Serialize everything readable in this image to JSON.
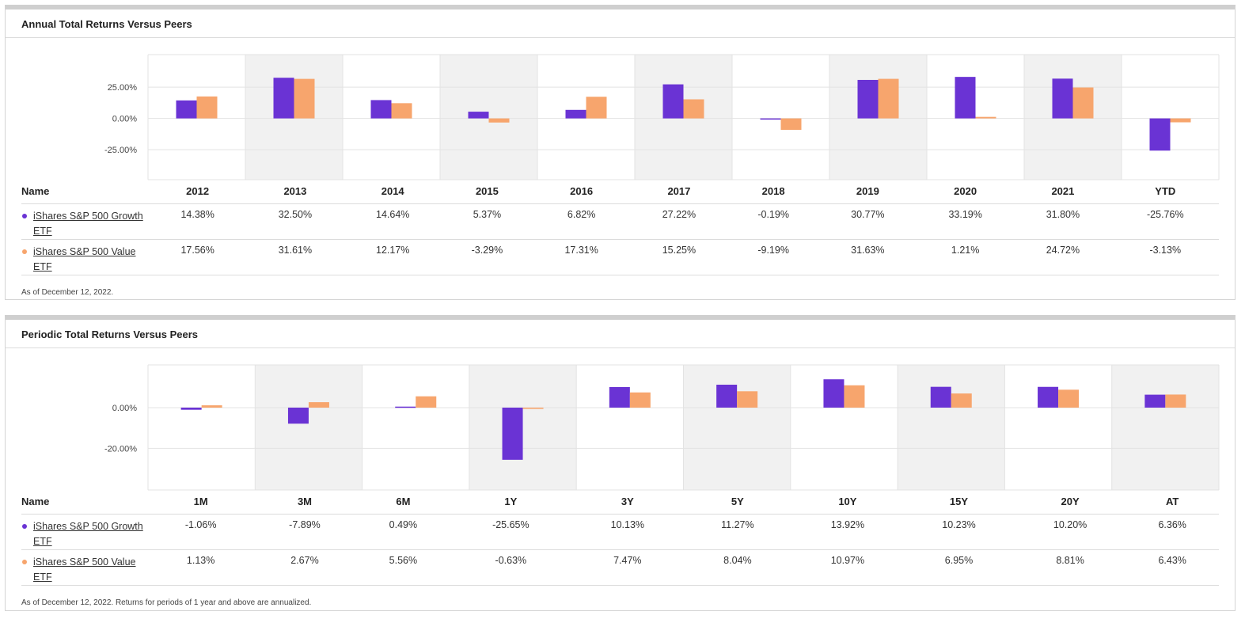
{
  "colors": {
    "growth": "#6a33d4",
    "value": "#f7a56d",
    "band": "#f1f1f1",
    "grid": "#e3e3e3"
  },
  "legend": [
    {
      "name": "iShares S&P 500 Growth ETF",
      "color": "#6a33d4",
      "icon": "dot-icon"
    },
    {
      "name": "iShares S&P 500 Value ETF",
      "color": "#f7a56d",
      "icon": "dot-icon"
    }
  ],
  "annual": {
    "title": "Annual Total Returns Versus Peers",
    "name_header": "Name",
    "footnote": "As of December 12, 2022.",
    "rows": [
      {
        "name": "iShares S&P 500 Growth ETF",
        "values": [
          "14.38%",
          "32.50%",
          "14.64%",
          "5.37%",
          "6.82%",
          "27.22%",
          "-0.19%",
          "30.77%",
          "33.19%",
          "31.80%",
          "-25.76%"
        ]
      },
      {
        "name": "iShares S&P 500 Value ETF",
        "values": [
          "17.56%",
          "31.61%",
          "12.17%",
          "-3.29%",
          "17.31%",
          "15.25%",
          "-9.19%",
          "31.63%",
          "1.21%",
          "24.72%",
          "-3.13%"
        ]
      }
    ]
  },
  "periodic": {
    "title": "Periodic Total Returns Versus Peers",
    "name_header": "Name",
    "footnote": "As of December 12, 2022. Returns for periods of 1 year and above are annualized.",
    "rows": [
      {
        "name": "iShares S&P 500 Growth ETF",
        "values": [
          "-1.06%",
          "-7.89%",
          "0.49%",
          "-25.65%",
          "10.13%",
          "11.27%",
          "13.92%",
          "10.23%",
          "10.20%",
          "6.36%"
        ]
      },
      {
        "name": "iShares S&P 500 Value ETF",
        "values": [
          "1.13%",
          "2.67%",
          "5.56%",
          "-0.63%",
          "7.47%",
          "8.04%",
          "10.97%",
          "6.95%",
          "8.81%",
          "6.43%"
        ]
      }
    ]
  },
  "chart_data": [
    {
      "type": "bar",
      "title": "Annual Total Returns Versus Peers",
      "categories": [
        "2012",
        "2013",
        "2014",
        "2015",
        "2016",
        "2017",
        "2018",
        "2019",
        "2020",
        "2021",
        "YTD"
      ],
      "series": [
        {
          "name": "iShares S&P 500 Growth ETF",
          "values": [
            14.38,
            32.5,
            14.64,
            5.37,
            6.82,
            27.22,
            -0.19,
            30.77,
            33.19,
            31.8,
            -25.76
          ]
        },
        {
          "name": "iShares S&P 500 Value ETF",
          "values": [
            17.56,
            31.61,
            12.17,
            -3.29,
            17.31,
            15.25,
            -9.19,
            31.63,
            1.21,
            24.72,
            -3.13
          ]
        }
      ],
      "yticks": [
        25,
        0,
        -25
      ],
      "ytick_labels": [
        "25.00%",
        "0.00%",
        "-25.00%"
      ],
      "ylim": [
        -49,
        51
      ],
      "grid": true,
      "alternating_bands": true
    },
    {
      "type": "bar",
      "title": "Periodic Total Returns Versus Peers",
      "categories": [
        "1M",
        "3M",
        "6M",
        "1Y",
        "3Y",
        "5Y",
        "10Y",
        "15Y",
        "20Y",
        "AT"
      ],
      "series": [
        {
          "name": "iShares S&P 500 Growth ETF",
          "values": [
            -1.06,
            -7.89,
            0.49,
            -25.65,
            10.13,
            11.27,
            13.92,
            10.23,
            10.2,
            6.36
          ]
        },
        {
          "name": "iShares S&P 500 Value ETF",
          "values": [
            1.13,
            2.67,
            5.56,
            -0.63,
            7.47,
            8.04,
            10.97,
            6.95,
            8.81,
            6.43
          ]
        }
      ],
      "yticks": [
        0,
        -20
      ],
      "ytick_labels": [
        "0.00%",
        "-20.00%"
      ],
      "ylim": [
        -40.5,
        21
      ],
      "grid": true,
      "alternating_bands": true
    }
  ]
}
